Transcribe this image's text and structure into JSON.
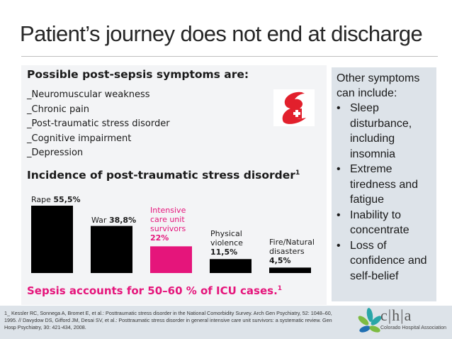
{
  "slide": {
    "title": "Patient’s journey does not end at discharge"
  },
  "symptoms": {
    "heading": "Possible post-sepsis symptoms are:",
    "items": [
      "_Neuromuscular weakness",
      "_Chronic pain",
      "_Post-traumatic stress disorder",
      "_Cognitive impairment",
      "_Depression"
    ]
  },
  "incidence": {
    "heading": "Incidence of post-traumatic stress disorder",
    "heading_sup": "1"
  },
  "chart_data": {
    "type": "bar",
    "title": "Incidence of post-traumatic stress disorder",
    "categories": [
      "Rape",
      "War",
      "Intensive care unit survivors",
      "Physical violence",
      "Fire/Natural disasters"
    ],
    "labels": [
      {
        "name": "Rape",
        "value_text": "55,5%"
      },
      {
        "name": "War",
        "value_text": "38,8%"
      },
      {
        "name": "Intensive care unit survivors",
        "value_text": "22%"
      },
      {
        "name": "Physical violence",
        "value_text": "11,5%"
      },
      {
        "name": "Fire/Natural disasters",
        "value_text": "4,5%"
      }
    ],
    "values": [
      55.5,
      38.8,
      22,
      11.5,
      4.5
    ],
    "highlight_index": 2,
    "colors": {
      "default": "#000000",
      "highlight": "#e5157b"
    },
    "ylim": [
      0,
      55.5
    ],
    "grid": false
  },
  "sepsis_note": {
    "text": "Sepsis accounts for 50–60 % of ICU cases.",
    "sup": "1"
  },
  "other_symptoms": {
    "heading": "Other symptoms can include:",
    "bullet": "•",
    "items": [
      "Sleep disturbance, including insomnia",
      "Extreme tiredness and fatigue",
      "Inability to concentrate",
      "Loss of confidence and self-belief"
    ]
  },
  "footnote": {
    "text": "1_ Kessler RC, Sonnega A, Bromet E, et al.: Posttraumatic stress disorder in the National Comorbidity Survey. Arch Gen Psychiatry, 52: 1048–60, 1995. // Davydow DS, Gifford JM, Desai SV, et al.: Posttraumatic stress disorder in general intensive care unit survivors: a systematic review. Gen Hosp Psychiatry, 30: 421-434, 2008."
  },
  "cha": {
    "letters": "c|h|a",
    "name": "Colorado Hospital Association"
  },
  "colors": {
    "accent_pink": "#e5157b",
    "logo_red": "#e2202c",
    "leaf_teal": "#2aa6a8",
    "leaf_green": "#7dbb42",
    "leaf_blue": "#1f6fb2"
  },
  "icons": {
    "sepsis_logo": "sepsis-s-cross-logo",
    "cha_logo": "leaf-cluster-logo"
  }
}
